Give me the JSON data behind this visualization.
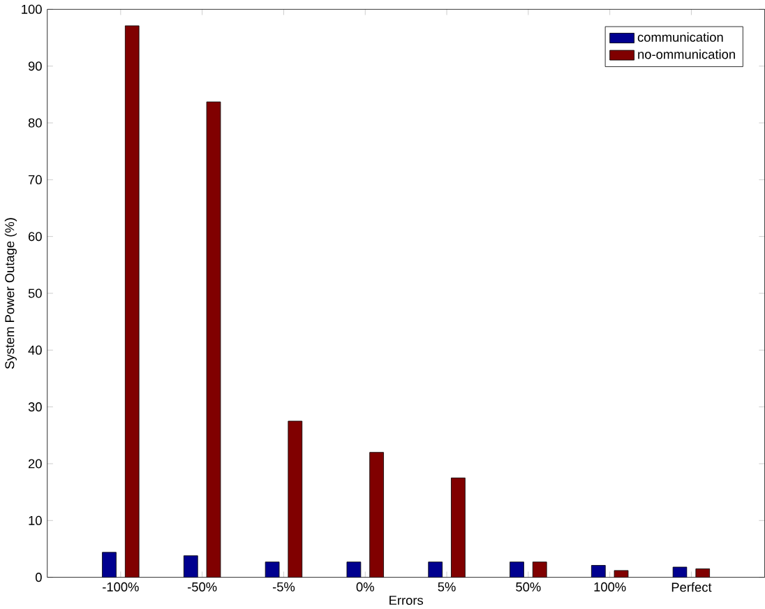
{
  "chart_data": {
    "type": "bar",
    "xlabel": "Errors",
    "ylabel": "System Power Outage (%)",
    "categories": [
      "-100%",
      "-50%",
      "-5%",
      "0%",
      "5%",
      "50%",
      "100%",
      "Perfect"
    ],
    "series": [
      {
        "name": "communication",
        "color": "#00008f",
        "values": [
          4.4,
          3.8,
          2.7,
          2.7,
          2.7,
          2.7,
          2.1,
          1.8
        ]
      },
      {
        "name": "no-ommunication",
        "color": "#800000",
        "values": [
          97.1,
          83.7,
          27.5,
          22,
          17.5,
          2.7,
          1.2,
          1.5
        ]
      }
    ],
    "ylim": [
      0,
      100
    ],
    "yticks": [
      0,
      10,
      20,
      30,
      40,
      50,
      60,
      70,
      80,
      90,
      100
    ],
    "grid": false,
    "legend": "top right"
  }
}
